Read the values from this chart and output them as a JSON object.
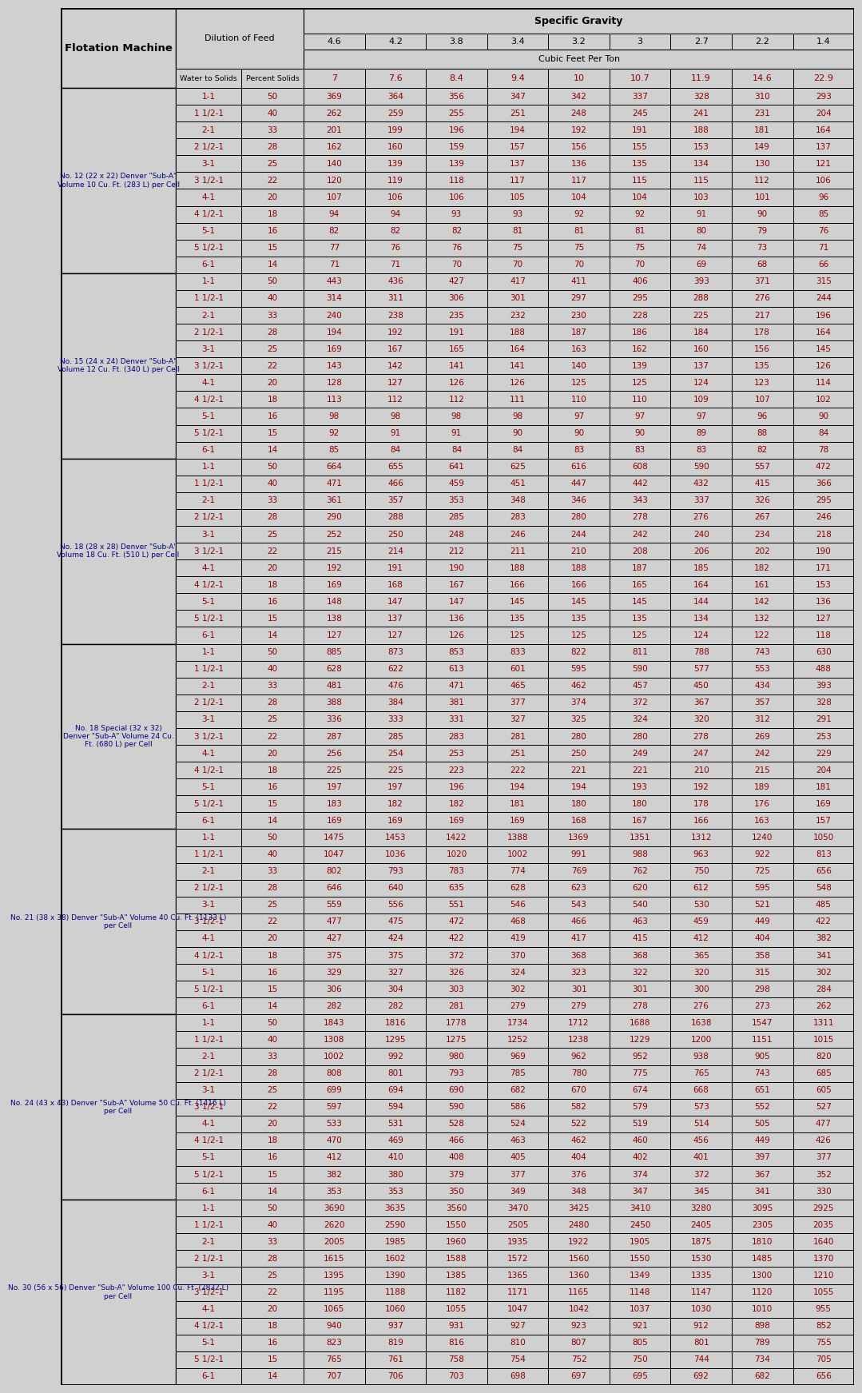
{
  "sg_values": [
    "4.6",
    "4.2",
    "3.8",
    "3.4",
    "3.2",
    "3",
    "2.7",
    "2.2",
    "1.4"
  ],
  "cfpt_values": [
    "7",
    "7.6",
    "8.4",
    "9.4",
    "10",
    "10.7",
    "11.9",
    "14.6",
    "22.9"
  ],
  "machines": [
    {
      "name": "No. 12 (22 x 22) Denver \"Sub-A\"\nVolume 10 Cu. Ft. (283 L) per Cell",
      "rows": [
        [
          "1-1",
          "50",
          "369",
          "364",
          "356",
          "347",
          "342",
          "337",
          "328",
          "310",
          "293"
        ],
        [
          "1 1/2-1",
          "40",
          "262",
          "259",
          "255",
          "251",
          "248",
          "245",
          "241",
          "231",
          "204"
        ],
        [
          "2-1",
          "33",
          "201",
          "199",
          "196",
          "194",
          "192",
          "191",
          "188",
          "181",
          "164"
        ],
        [
          "2 1/2-1",
          "28",
          "162",
          "160",
          "159",
          "157",
          "156",
          "155",
          "153",
          "149",
          "137"
        ],
        [
          "3-1",
          "25",
          "140",
          "139",
          "139",
          "137",
          "136",
          "135",
          "134",
          "130",
          "121"
        ],
        [
          "3 1/2-1",
          "22",
          "120",
          "119",
          "118",
          "117",
          "117",
          "115",
          "115",
          "112",
          "106"
        ],
        [
          "4-1",
          "20",
          "107",
          "106",
          "106",
          "105",
          "104",
          "104",
          "103",
          "101",
          "96"
        ],
        [
          "4 1/2-1",
          "18",
          "94",
          "94",
          "93",
          "93",
          "92",
          "92",
          "91",
          "90",
          "85"
        ],
        [
          "5-1",
          "16",
          "82",
          "82",
          "82",
          "81",
          "81",
          "81",
          "80",
          "79",
          "76"
        ],
        [
          "5 1/2-1",
          "15",
          "77",
          "76",
          "76",
          "75",
          "75",
          "75",
          "74",
          "73",
          "71"
        ],
        [
          "6-1",
          "14",
          "71",
          "71",
          "70",
          "70",
          "70",
          "70",
          "69",
          "68",
          "66"
        ]
      ]
    },
    {
      "name": "No. 15 (24 x 24) Denver \"Sub-A\"\nVolume 12 Cu. Ft. (340 L) per Cell",
      "rows": [
        [
          "1-1",
          "50",
          "443",
          "436",
          "427",
          "417",
          "411",
          "406",
          "393",
          "371",
          "315"
        ],
        [
          "1 1/2-1",
          "40",
          "314",
          "311",
          "306",
          "301",
          "297",
          "295",
          "288",
          "276",
          "244"
        ],
        [
          "2-1",
          "33",
          "240",
          "238",
          "235",
          "232",
          "230",
          "228",
          "225",
          "217",
          "196"
        ],
        [
          "2 1/2-1",
          "28",
          "194",
          "192",
          "191",
          "188",
          "187",
          "186",
          "184",
          "178",
          "164"
        ],
        [
          "3-1",
          "25",
          "169",
          "167",
          "165",
          "164",
          "163",
          "162",
          "160",
          "156",
          "145"
        ],
        [
          "3 1/2-1",
          "22",
          "143",
          "142",
          "141",
          "141",
          "140",
          "139",
          "137",
          "135",
          "126"
        ],
        [
          "4-1",
          "20",
          "128",
          "127",
          "126",
          "126",
          "125",
          "125",
          "124",
          "123",
          "114"
        ],
        [
          "4 1/2-1",
          "18",
          "113",
          "112",
          "112",
          "111",
          "110",
          "110",
          "109",
          "107",
          "102"
        ],
        [
          "5-1",
          "16",
          "98",
          "98",
          "98",
          "98",
          "97",
          "97",
          "97",
          "96",
          "90"
        ],
        [
          "5 1/2-1",
          "15",
          "92",
          "91",
          "91",
          "90",
          "90",
          "90",
          "89",
          "88",
          "84"
        ],
        [
          "6-1",
          "14",
          "85",
          "84",
          "84",
          "84",
          "83",
          "83",
          "83",
          "82",
          "78"
        ]
      ]
    },
    {
      "name": "No. 18 (28 x 28) Denver \"Sub-A\"\nVolume 18 Cu. Ft. (510 L) per Cell",
      "rows": [
        [
          "1-1",
          "50",
          "664",
          "655",
          "641",
          "625",
          "616",
          "608",
          "590",
          "557",
          "472"
        ],
        [
          "1 1/2-1",
          "40",
          "471",
          "466",
          "459",
          "451",
          "447",
          "442",
          "432",
          "415",
          "366"
        ],
        [
          "2-1",
          "33",
          "361",
          "357",
          "353",
          "348",
          "346",
          "343",
          "337",
          "326",
          "295"
        ],
        [
          "2 1/2-1",
          "28",
          "290",
          "288",
          "285",
          "283",
          "280",
          "278",
          "276",
          "267",
          "246"
        ],
        [
          "3-1",
          "25",
          "252",
          "250",
          "248",
          "246",
          "244",
          "242",
          "240",
          "234",
          "218"
        ],
        [
          "3 1/2-1",
          "22",
          "215",
          "214",
          "212",
          "211",
          "210",
          "208",
          "206",
          "202",
          "190"
        ],
        [
          "4-1",
          "20",
          "192",
          "191",
          "190",
          "188",
          "188",
          "187",
          "185",
          "182",
          "171"
        ],
        [
          "4 1/2-1",
          "18",
          "169",
          "168",
          "167",
          "166",
          "166",
          "165",
          "164",
          "161",
          "153"
        ],
        [
          "5-1",
          "16",
          "148",
          "147",
          "147",
          "145",
          "145",
          "145",
          "144",
          "142",
          "136"
        ],
        [
          "5 1/2-1",
          "15",
          "138",
          "137",
          "136",
          "135",
          "135",
          "135",
          "134",
          "132",
          "127"
        ],
        [
          "6-1",
          "14",
          "127",
          "127",
          "126",
          "125",
          "125",
          "125",
          "124",
          "122",
          "118"
        ]
      ]
    },
    {
      "name": "No. 18 Special (32 x 32)\nDenver \"Sub-A\" Volume 24 Cu.\nFt. (680 L) per Cell",
      "rows": [
        [
          "1-1",
          "50",
          "885",
          "873",
          "853",
          "833",
          "822",
          "811",
          "788",
          "743",
          "630"
        ],
        [
          "1 1/2-1",
          "40",
          "628",
          "622",
          "613",
          "601",
          "595",
          "590",
          "577",
          "553",
          "488"
        ],
        [
          "2-1",
          "33",
          "481",
          "476",
          "471",
          "465",
          "462",
          "457",
          "450",
          "434",
          "393"
        ],
        [
          "2 1/2-1",
          "28",
          "388",
          "384",
          "381",
          "377",
          "374",
          "372",
          "367",
          "357",
          "328"
        ],
        [
          "3-1",
          "25",
          "336",
          "333",
          "331",
          "327",
          "325",
          "324",
          "320",
          "312",
          "291"
        ],
        [
          "3 1/2-1",
          "22",
          "287",
          "285",
          "283",
          "281",
          "280",
          "280",
          "278",
          "269",
          "253"
        ],
        [
          "4-1",
          "20",
          "256",
          "254",
          "253",
          "251",
          "250",
          "249",
          "247",
          "242",
          "229"
        ],
        [
          "4 1/2-1",
          "18",
          "225",
          "225",
          "223",
          "222",
          "221",
          "221",
          "210",
          "215",
          "204"
        ],
        [
          "5-1",
          "16",
          "197",
          "197",
          "196",
          "194",
          "194",
          "193",
          "192",
          "189",
          "181"
        ],
        [
          "5 1/2-1",
          "15",
          "183",
          "182",
          "182",
          "181",
          "180",
          "180",
          "178",
          "176",
          "169"
        ],
        [
          "6-1",
          "14",
          "169",
          "169",
          "169",
          "169",
          "168",
          "167",
          "166",
          "163",
          "157"
        ]
      ]
    },
    {
      "name": "No. 21 (38 x 38) Denver \"Sub-A\" Volume 40 Cu. Ft. (1133 L)\nper Cell",
      "rows": [
        [
          "1-1",
          "50",
          "1475",
          "1453",
          "1422",
          "1388",
          "1369",
          "1351",
          "1312",
          "1240",
          "1050"
        ],
        [
          "1 1/2-1",
          "40",
          "1047",
          "1036",
          "1020",
          "1002",
          "991",
          "988",
          "963",
          "922",
          "813"
        ],
        [
          "2-1",
          "33",
          "802",
          "793",
          "783",
          "774",
          "769",
          "762",
          "750",
          "725",
          "656"
        ],
        [
          "2 1/2-1",
          "28",
          "646",
          "640",
          "635",
          "628",
          "623",
          "620",
          "612",
          "595",
          "548"
        ],
        [
          "3-1",
          "25",
          "559",
          "556",
          "551",
          "546",
          "543",
          "540",
          "530",
          "521",
          "485"
        ],
        [
          "3 1/2-1",
          "22",
          "477",
          "475",
          "472",
          "468",
          "466",
          "463",
          "459",
          "449",
          "422"
        ],
        [
          "4-1",
          "20",
          "427",
          "424",
          "422",
          "419",
          "417",
          "415",
          "412",
          "404",
          "382"
        ],
        [
          "4 1/2-1",
          "18",
          "375",
          "375",
          "372",
          "370",
          "368",
          "368",
          "365",
          "358",
          "341"
        ],
        [
          "5-1",
          "16",
          "329",
          "327",
          "326",
          "324",
          "323",
          "322",
          "320",
          "315",
          "302"
        ],
        [
          "5 1/2-1",
          "15",
          "306",
          "304",
          "303",
          "302",
          "301",
          "301",
          "300",
          "298",
          "284"
        ],
        [
          "6-1",
          "14",
          "282",
          "282",
          "281",
          "279",
          "279",
          "278",
          "276",
          "273",
          "262"
        ]
      ]
    },
    {
      "name": "No. 24 (43 x 43) Denver \"Sub-A\" Volume 50 Cu. Ft. (1416 L)\nper Cell",
      "rows": [
        [
          "1-1",
          "50",
          "1843",
          "1816",
          "1778",
          "1734",
          "1712",
          "1688",
          "1638",
          "1547",
          "1311"
        ],
        [
          "1 1/2-1",
          "40",
          "1308",
          "1295",
          "1275",
          "1252",
          "1238",
          "1229",
          "1200",
          "1151",
          "1015"
        ],
        [
          "2-1",
          "33",
          "1002",
          "992",
          "980",
          "969",
          "962",
          "952",
          "938",
          "905",
          "820"
        ],
        [
          "2 1/2-1",
          "28",
          "808",
          "801",
          "793",
          "785",
          "780",
          "775",
          "765",
          "743",
          "685"
        ],
        [
          "3-1",
          "25",
          "699",
          "694",
          "690",
          "682",
          "670",
          "674",
          "668",
          "651",
          "605"
        ],
        [
          "3 1/2-1",
          "22",
          "597",
          "594",
          "590",
          "586",
          "582",
          "579",
          "573",
          "552",
          "527"
        ],
        [
          "4-1",
          "20",
          "533",
          "531",
          "528",
          "524",
          "522",
          "519",
          "514",
          "505",
          "477"
        ],
        [
          "4 1/2-1",
          "18",
          "470",
          "469",
          "466",
          "463",
          "462",
          "460",
          "456",
          "449",
          "426"
        ],
        [
          "5-1",
          "16",
          "412",
          "410",
          "408",
          "405",
          "404",
          "402",
          "401",
          "397",
          "377"
        ],
        [
          "5 1/2-1",
          "15",
          "382",
          "380",
          "379",
          "377",
          "376",
          "374",
          "372",
          "367",
          "352"
        ],
        [
          "6-1",
          "14",
          "353",
          "353",
          "350",
          "349",
          "348",
          "347",
          "345",
          "341",
          "330"
        ]
      ]
    },
    {
      "name": "No. 30 (56 x 56) Denver \"Sub-A\" Volume 100 Cu. Ft. (2832 L)\nper Cell",
      "rows": [
        [
          "1-1",
          "50",
          "3690",
          "3635",
          "3560",
          "3470",
          "3425",
          "3410",
          "3280",
          "3095",
          "2925"
        ],
        [
          "1 1/2-1",
          "40",
          "2620",
          "2590",
          "1550",
          "2505",
          "2480",
          "2450",
          "2405",
          "2305",
          "2035"
        ],
        [
          "2-1",
          "33",
          "2005",
          "1985",
          "1960",
          "1935",
          "1922",
          "1905",
          "1875",
          "1810",
          "1640"
        ],
        [
          "2 1/2-1",
          "28",
          "1615",
          "1602",
          "1588",
          "1572",
          "1560",
          "1550",
          "1530",
          "1485",
          "1370"
        ],
        [
          "3-1",
          "25",
          "1395",
          "1390",
          "1385",
          "1365",
          "1360",
          "1349",
          "1335",
          "1300",
          "1210"
        ],
        [
          "3 1/2-1",
          "22",
          "1195",
          "1188",
          "1182",
          "1171",
          "1165",
          "1148",
          "1147",
          "1120",
          "1055"
        ],
        [
          "4-1",
          "20",
          "1065",
          "1060",
          "1055",
          "1047",
          "1042",
          "1037",
          "1030",
          "1010",
          "955"
        ],
        [
          "4 1/2-1",
          "18",
          "940",
          "937",
          "931",
          "927",
          "923",
          "921",
          "912",
          "898",
          "852"
        ],
        [
          "5-1",
          "16",
          "823",
          "819",
          "816",
          "810",
          "807",
          "805",
          "801",
          "789",
          "755"
        ],
        [
          "5 1/2-1",
          "15",
          "765",
          "761",
          "758",
          "754",
          "752",
          "750",
          "744",
          "734",
          "705"
        ],
        [
          "6-1",
          "14",
          "707",
          "706",
          "703",
          "698",
          "697",
          "695",
          "692",
          "682",
          "656"
        ]
      ]
    }
  ],
  "bg_color": "#d0d0d0",
  "text_red": "#8B0000",
  "text_black": "#000000",
  "text_navy": "#000080",
  "line_color": "#000000"
}
